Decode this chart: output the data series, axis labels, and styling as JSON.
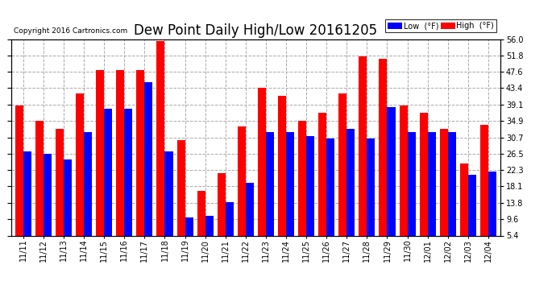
{
  "title": "Dew Point Daily High/Low 20161205",
  "copyright": "Copyright 2016 Cartronics.com",
  "dates": [
    "11/11",
    "11/12",
    "11/13",
    "11/14",
    "11/15",
    "11/16",
    "11/17",
    "11/18",
    "11/19",
    "11/20",
    "11/21",
    "11/22",
    "11/23",
    "11/24",
    "11/25",
    "11/26",
    "11/27",
    "11/28",
    "11/29",
    "11/30",
    "12/01",
    "12/02",
    "12/03",
    "12/04"
  ],
  "low": [
    27.0,
    26.5,
    25.0,
    32.0,
    38.0,
    38.0,
    45.0,
    27.0,
    10.0,
    10.5,
    14.0,
    19.0,
    32.0,
    32.0,
    31.0,
    30.5,
    33.0,
    30.5,
    38.5,
    32.0,
    32.0,
    32.0,
    21.0,
    22.0
  ],
  "high": [
    39.0,
    35.0,
    33.0,
    42.0,
    48.0,
    48.0,
    48.0,
    55.5,
    30.0,
    17.0,
    21.5,
    33.5,
    43.5,
    41.5,
    35.0,
    37.0,
    42.0,
    51.5,
    51.0,
    39.0,
    37.0,
    33.0,
    24.0,
    34.0
  ],
  "ymin": 5.4,
  "ymax": 56.0,
  "yticks": [
    5.4,
    9.6,
    13.8,
    18.1,
    22.3,
    26.5,
    30.7,
    34.9,
    39.1,
    43.4,
    47.6,
    51.8,
    56.0
  ],
  "low_color": "#0000FF",
  "high_color": "#FF0000",
  "background_color": "#FFFFFF",
  "grid_color": "#AAAAAA",
  "title_fontsize": 12,
  "tick_fontsize": 7,
  "bar_width": 0.4
}
